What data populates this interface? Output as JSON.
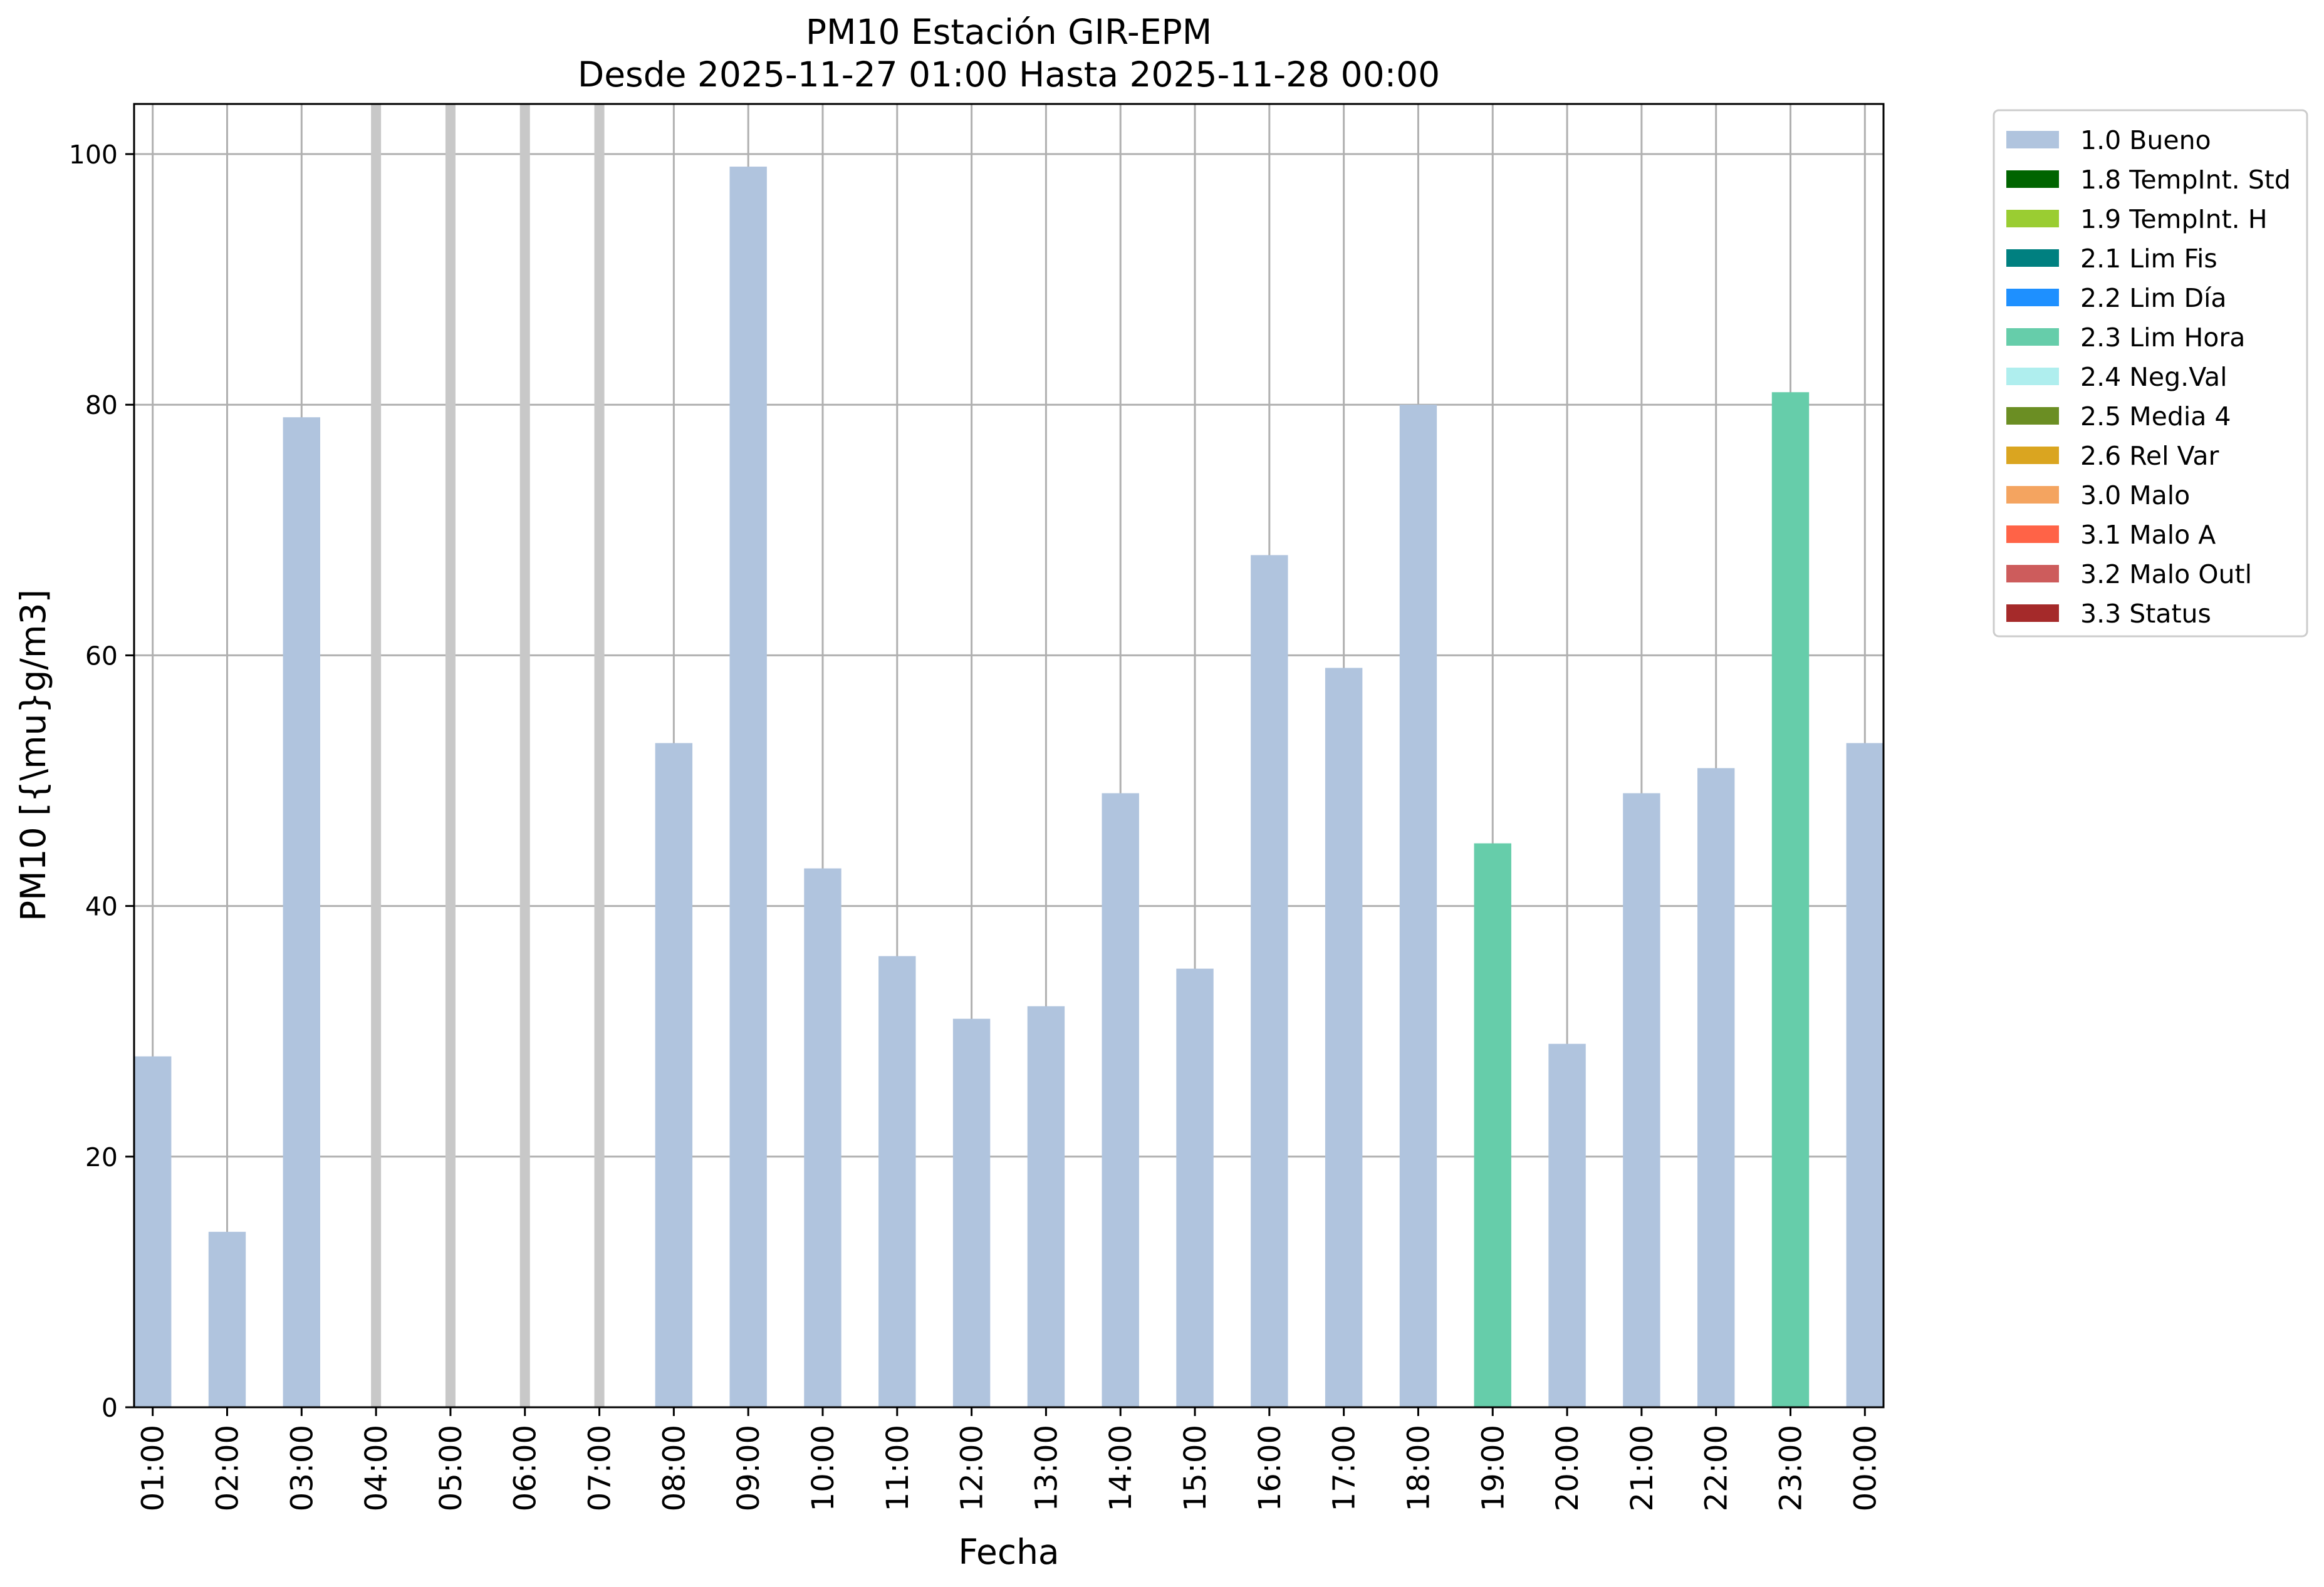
{
  "chart_data": {
    "type": "bar",
    "title": "PM10 Estación GIR-EPM",
    "subtitle": "Desde 2025-11-27 01:00 Hasta 2025-11-28 00:00",
    "xlabel": "Fecha",
    "ylabel": "PM10 [{\\mu}g/m3]",
    "ylim": [
      0,
      104
    ],
    "yticks": [
      0,
      20,
      40,
      60,
      80,
      100
    ],
    "grid": true,
    "legend_position": "outside-top-right",
    "categories": [
      "01:00",
      "02:00",
      "03:00",
      "04:00",
      "05:00",
      "06:00",
      "07:00",
      "08:00",
      "09:00",
      "10:00",
      "11:00",
      "12:00",
      "13:00",
      "14:00",
      "15:00",
      "16:00",
      "17:00",
      "18:00",
      "19:00",
      "20:00",
      "21:00",
      "22:00",
      "23:00",
      "00:00"
    ],
    "values": [
      28,
      14,
      79,
      null,
      null,
      null,
      null,
      53,
      99,
      43,
      36,
      31,
      32,
      49,
      35,
      68,
      59,
      80,
      45,
      29,
      49,
      51,
      81,
      53
    ],
    "flags": [
      "1.0 Bueno",
      "1.0 Bueno",
      "1.0 Bueno",
      null,
      null,
      null,
      null,
      "1.0 Bueno",
      "1.0 Bueno",
      "1.0 Bueno",
      "1.0 Bueno",
      "1.0 Bueno",
      "1.0 Bueno",
      "1.0 Bueno",
      "1.0 Bueno",
      "1.0 Bueno",
      "1.0 Bueno",
      "1.0 Bueno",
      "2.3 Lim Hora",
      "1.0 Bueno",
      "1.0 Bueno",
      "1.0 Bueno",
      "2.3 Lim Hora",
      "1.0 Bueno"
    ],
    "missing_marker_color": "#c8c8c8",
    "legend": [
      {
        "label": "1.0 Bueno",
        "color": "#b0c4de"
      },
      {
        "label": "1.8 TempInt. Std",
        "color": "#006400"
      },
      {
        "label": "1.9 TempInt. H",
        "color": "#9acd32"
      },
      {
        "label": "2.1 Lim Fis",
        "color": "#008080"
      },
      {
        "label": "2.2 Lim Día",
        "color": "#1e90ff"
      },
      {
        "label": "2.3 Lim Hora",
        "color": "#66cdaa"
      },
      {
        "label": "2.4 Neg.Val",
        "color": "#afeeee"
      },
      {
        "label": "2.5 Media 4",
        "color": "#6b8e23"
      },
      {
        "label": "2.6 Rel Var",
        "color": "#daa520"
      },
      {
        "label": "3.0 Malo",
        "color": "#f4a460"
      },
      {
        "label": "3.1 Malo A",
        "color": "#ff6347"
      },
      {
        "label": "3.2 Malo Outl",
        "color": "#cd5c5c"
      },
      {
        "label": "3.3 Status",
        "color": "#a52a2a"
      }
    ]
  }
}
